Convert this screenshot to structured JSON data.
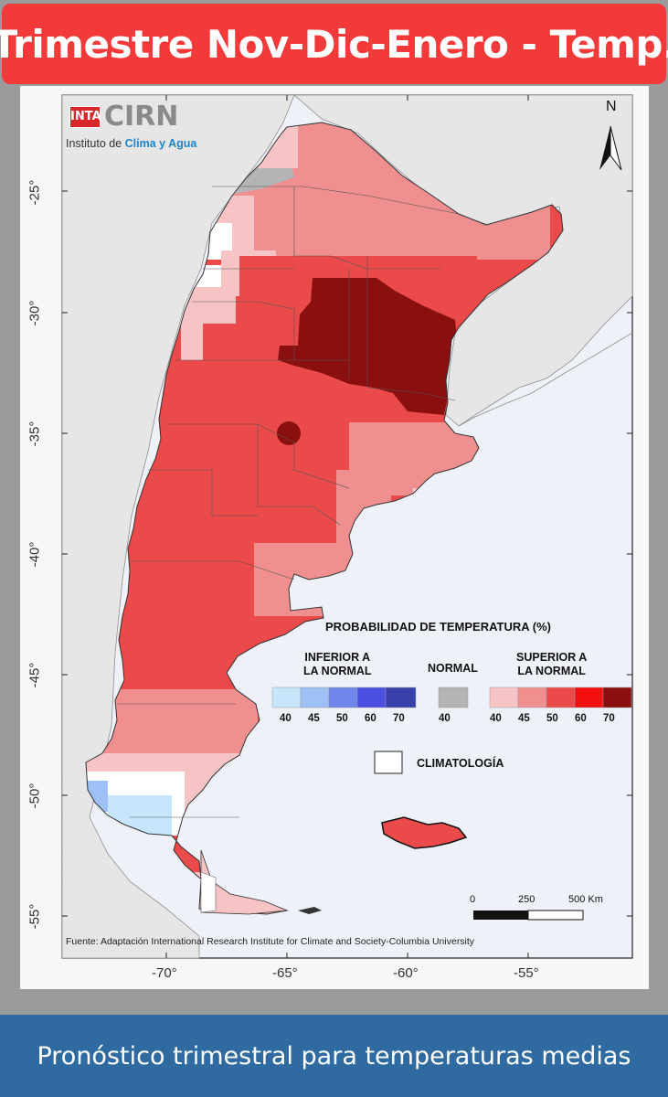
{
  "header": {
    "title": "Trimestre Nov-Dic-Enero - Temp."
  },
  "footer": {
    "caption": "Pronóstico trimestral para temperaturas medias"
  },
  "logo": {
    "badge": "INTA",
    "name": "CIRN",
    "subtitle_prefix": "Instituto de ",
    "subtitle_highlight": "Clima y Agua"
  },
  "north_arrow": {
    "label": "N"
  },
  "axes": {
    "latitude_labels": [
      "-25°",
      "-30°",
      "-35°",
      "-40°",
      "-45°",
      "-50°",
      "-55°"
    ],
    "longitude_labels": [
      "-70°",
      "-65°",
      "-60°",
      "-55°"
    ]
  },
  "legend": {
    "title": "PROBABILIDAD DE TEMPERATURA (%)",
    "below_label_line1": "INFERIOR A",
    "below_label_line2": "LA NORMAL",
    "normal_label": "NORMAL",
    "above_label_line1": "SUPERIOR A",
    "above_label_line2": "LA NORMAL",
    "below_ticks": [
      "40",
      "45",
      "50",
      "60",
      "70"
    ],
    "normal_tick": "40",
    "above_ticks": [
      "40",
      "45",
      "50",
      "60",
      "70"
    ],
    "climatology_label": "CLIMATOLOGÍA",
    "below_colors": [
      "#c7e6fb",
      "#9fc0f5",
      "#6f86ea",
      "#4a4fe0",
      "#3640a8"
    ],
    "normal_color": "#b4b4b4",
    "above_colors": [
      "#f6c4c4",
      "#ef8f8f",
      "#ea4a4a",
      "#f41010",
      "#8a1010"
    ],
    "climatology_color": "#ffffff"
  },
  "scale_bar": {
    "labels": [
      "0",
      "250",
      "500 Km"
    ]
  },
  "source": "Fuente: Adaptación International Research Institute for Climate and Society-Columbia University"
}
